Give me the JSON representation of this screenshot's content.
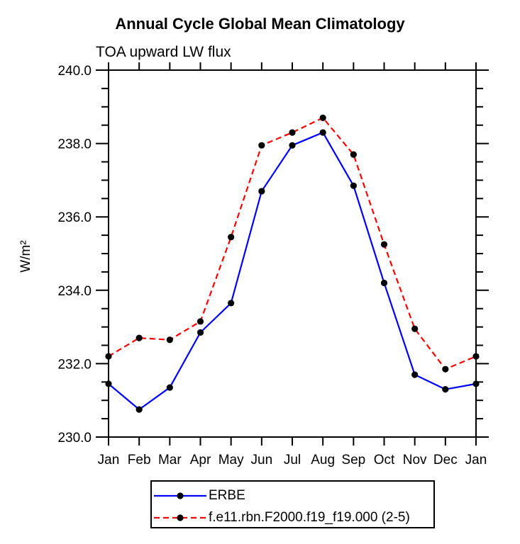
{
  "figure": {
    "title": "Annual Cycle Global Mean Climatology",
    "subtitle": "TOA upward LW flux",
    "y_axis_label": "W/m²"
  },
  "legend": {
    "position": "bottom",
    "items": [
      {
        "label": "ERBE",
        "color": "#0000ff",
        "style": "solid"
      },
      {
        "label": "f.e11.rbn.F2000.f19_f19.000 (2-5)",
        "color": "#ff0000",
        "style": "dashed"
      }
    ]
  },
  "chart_data": {
    "type": "line",
    "title": "Annual Cycle Global Mean Climatology",
    "subtitle": "TOA upward LW flux",
    "xlabel": "",
    "ylabel": "W/m²",
    "categories": [
      "Jan",
      "Feb",
      "Mar",
      "Apr",
      "May",
      "Jun",
      "Jul",
      "Aug",
      "Sep",
      "Oct",
      "Nov",
      "Dec",
      "Jan"
    ],
    "ylim": [
      230.0,
      240.0
    ],
    "ytick_major": [
      230.0,
      232.0,
      234.0,
      236.0,
      238.0,
      240.0
    ],
    "ytick_labels": [
      "230.0",
      "232.0",
      "234.0",
      "236.0",
      "238.0",
      "240.0"
    ],
    "ytick_minor_step": 0.5,
    "grid": false,
    "marker": "filled-circle",
    "marker_color": "#000000",
    "series": [
      {
        "name": "ERBE",
        "color": "#0000ff",
        "line_style": "solid",
        "values": [
          231.45,
          230.75,
          231.35,
          232.85,
          233.65,
          236.7,
          237.95,
          238.3,
          236.85,
          234.2,
          231.7,
          231.3,
          231.45
        ]
      },
      {
        "name": "f.e11.rbn.F2000.f19_f19.000 (2-5)",
        "color": "#ff0000",
        "line_style": "dashed",
        "values": [
          232.2,
          232.7,
          232.65,
          233.15,
          235.45,
          237.95,
          238.3,
          238.7,
          237.7,
          235.25,
          232.95,
          231.85,
          232.2
        ]
      }
    ]
  }
}
